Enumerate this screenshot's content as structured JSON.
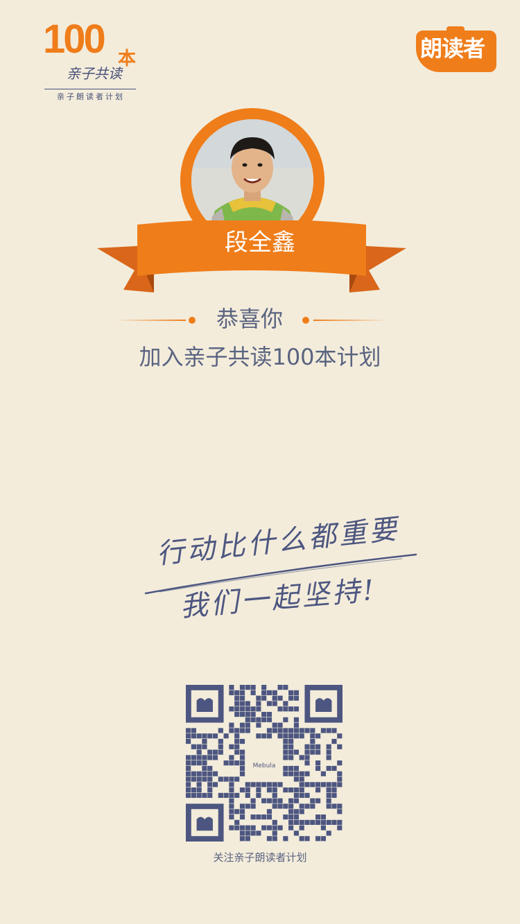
{
  "logo_left": {
    "number": "100",
    "ben": "本",
    "script": "亲子共读",
    "subtitle": "亲子朗读者计划"
  },
  "logo_right": {
    "text": "朗读者"
  },
  "profile": {
    "name": "段全鑫"
  },
  "congrats": {
    "title": "恭喜你",
    "subtitle": "加入亲子共读100本计划"
  },
  "slogan": {
    "line1": "行动比什么都重要",
    "line2": "我们一起坚持!"
  },
  "qr": {
    "center_label": "Mebula",
    "caption": "关注亲子朗读者计划"
  },
  "colors": {
    "accent": "#ef7d1a",
    "navy": "#4d5680",
    "background": "#f3ecdb"
  }
}
